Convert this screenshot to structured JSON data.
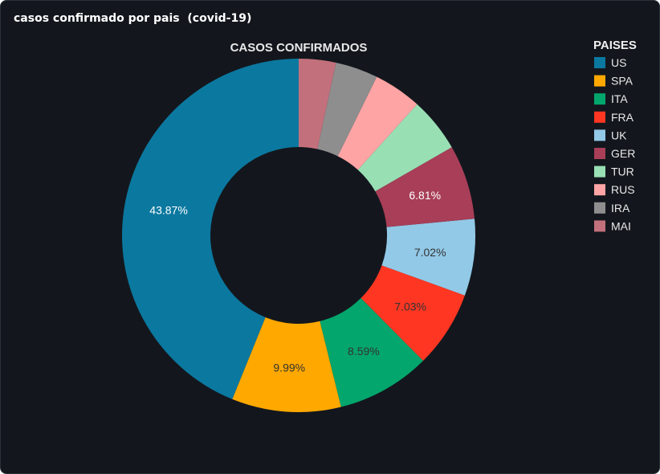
{
  "panel": {
    "title": "casos confirmado por pais  (covid-19)"
  },
  "chart_data": {
    "type": "pie",
    "style": "donut",
    "title": "CASOS CONFIRMADOS",
    "legend_title": "PAISES",
    "legend_position": "right",
    "categories": [
      "US",
      "SPA",
      "ITA",
      "FRA",
      "UK",
      "GER",
      "TUR",
      "RUS",
      "IRA",
      "MAI"
    ],
    "values": [
      43.87,
      9.99,
      8.59,
      7.03,
      7.02,
      6.81,
      5.0,
      4.4,
      3.9,
      3.39
    ],
    "data_labels": [
      "43.87%",
      "9.99%",
      "8.59%",
      "7.03%",
      "7.02%",
      "6.81%",
      "",
      "",
      "",
      ""
    ],
    "colors": [
      "#0b789f",
      "#ffa800",
      "#03a66c",
      "#ff3622",
      "#92c9e7",
      "#a83e57",
      "#99dfb4",
      "#ffa4a4",
      "#8e8e8e",
      "#c3707d"
    ],
    "label_colors": [
      "#ffffff",
      "#333333",
      "#333333",
      "#333333",
      "#333333",
      "#ffffff",
      "#333333",
      "#333333",
      "#333333",
      "#333333"
    ]
  }
}
